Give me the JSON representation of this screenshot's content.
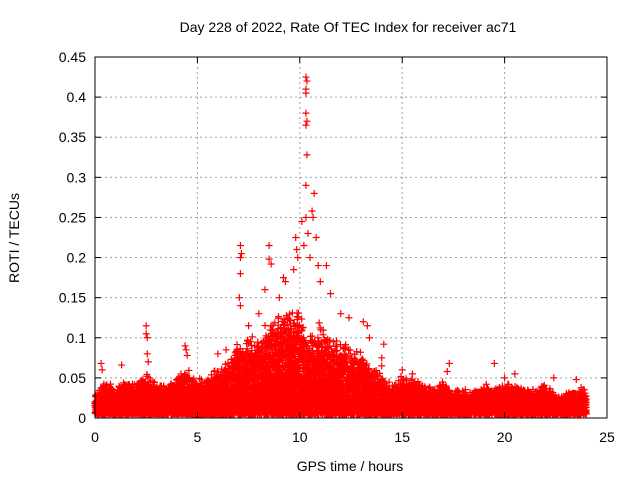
{
  "chart_data": {
    "type": "scatter",
    "title": "Day 228 of 2022, Rate Of TEC Index for receiver ac71",
    "xlabel": "GPS time / hours",
    "ylabel": "ROTI / TECUs",
    "xlim": [
      0,
      25
    ],
    "ylim": [
      0,
      0.45
    ],
    "xticks": [
      0,
      5,
      10,
      15,
      20,
      25
    ],
    "xtick_labels": [
      "0",
      "5",
      "10",
      "15",
      "20",
      "25"
    ],
    "yticks": [
      0,
      0.05,
      0.1,
      0.15,
      0.2,
      0.25,
      0.3,
      0.35,
      0.4,
      0.45
    ],
    "ytick_labels": [
      "0",
      "0.05",
      "0.1",
      "0.15",
      "0.2",
      "0.25",
      "0.3",
      "0.35",
      "0.4",
      "0.45"
    ],
    "grid": true,
    "marker": "+",
    "color": "#ff0000",
    "dense_band": {
      "x_start": 0,
      "x_end": 24,
      "lower": 0.005,
      "hours": [
        0,
        0.5,
        1,
        1.5,
        2,
        2.5,
        3,
        3.5,
        4,
        4.5,
        5,
        5.5,
        6,
        6.5,
        7,
        7.5,
        8,
        8.5,
        9,
        9.5,
        10,
        10.5,
        11,
        11.5,
        12,
        12.5,
        13,
        13.5,
        14,
        14.5,
        15,
        15.5,
        16,
        16.5,
        17,
        17.5,
        18,
        18.5,
        19,
        19.5,
        20,
        20.5,
        21,
        21.5,
        22,
        22.5,
        23,
        23.5,
        24
      ],
      "upper": [
        0.03,
        0.045,
        0.035,
        0.045,
        0.04,
        0.055,
        0.04,
        0.04,
        0.05,
        0.06,
        0.045,
        0.05,
        0.06,
        0.07,
        0.09,
        0.1,
        0.1,
        0.11,
        0.12,
        0.13,
        0.125,
        0.1,
        0.11,
        0.1,
        0.09,
        0.08,
        0.08,
        0.06,
        0.05,
        0.04,
        0.05,
        0.045,
        0.04,
        0.035,
        0.045,
        0.035,
        0.035,
        0.035,
        0.04,
        0.035,
        0.04,
        0.04,
        0.035,
        0.035,
        0.04,
        0.03,
        0.03,
        0.035,
        0.035
      ]
    },
    "points": [
      [
        0.3,
        0.068
      ],
      [
        0.35,
        0.06
      ],
      [
        1.3,
        0.066
      ],
      [
        2.5,
        0.115
      ],
      [
        2.5,
        0.105
      ],
      [
        2.55,
        0.1
      ],
      [
        2.55,
        0.08
      ],
      [
        2.6,
        0.07
      ],
      [
        4.4,
        0.09
      ],
      [
        4.45,
        0.085
      ],
      [
        4.5,
        0.078
      ],
      [
        6,
        0.08
      ],
      [
        6.4,
        0.085
      ],
      [
        7.1,
        0.215
      ],
      [
        7.15,
        0.205
      ],
      [
        7.1,
        0.2
      ],
      [
        7.1,
        0.18
      ],
      [
        7.05,
        0.15
      ],
      [
        7.1,
        0.14
      ],
      [
        7.5,
        0.115
      ],
      [
        8.0,
        0.13
      ],
      [
        8.5,
        0.215
      ],
      [
        8.5,
        0.198
      ],
      [
        8.6,
        0.192
      ],
      [
        8.3,
        0.16
      ],
      [
        9.0,
        0.15
      ],
      [
        9.2,
        0.175
      ],
      [
        9.3,
        0.17
      ],
      [
        9.8,
        0.225
      ],
      [
        9.85,
        0.21
      ],
      [
        9.9,
        0.2
      ],
      [
        9.7,
        0.185
      ],
      [
        10.3,
        0.425
      ],
      [
        10.35,
        0.42
      ],
      [
        10.3,
        0.41
      ],
      [
        10.3,
        0.405
      ],
      [
        10.3,
        0.38
      ],
      [
        10.35,
        0.37
      ],
      [
        10.3,
        0.365
      ],
      [
        10.35,
        0.328
      ],
      [
        10.3,
        0.29
      ],
      [
        10.7,
        0.28
      ],
      [
        10.6,
        0.258
      ],
      [
        10.65,
        0.25
      ],
      [
        10.3,
        0.25
      ],
      [
        10.1,
        0.245
      ],
      [
        10.4,
        0.23
      ],
      [
        10.2,
        0.215
      ],
      [
        10.8,
        0.225
      ],
      [
        10.5,
        0.2
      ],
      [
        10.9,
        0.19
      ],
      [
        11.0,
        0.17
      ],
      [
        11.3,
        0.19
      ],
      [
        11.5,
        0.155
      ],
      [
        12.0,
        0.13
      ],
      [
        12.4,
        0.125
      ],
      [
        13.1,
        0.12
      ],
      [
        13.3,
        0.115
      ],
      [
        13.4,
        0.1
      ],
      [
        14.1,
        0.092
      ],
      [
        14.0,
        0.075
      ],
      [
        14.0,
        0.065
      ],
      [
        15.0,
        0.06
      ],
      [
        15.5,
        0.055
      ],
      [
        17.3,
        0.068
      ],
      [
        17.2,
        0.058
      ],
      [
        19.5,
        0.068
      ],
      [
        20.0,
        0.05
      ],
      [
        20.5,
        0.055
      ],
      [
        22.4,
        0.05
      ],
      [
        23.5,
        0.048
      ]
    ]
  }
}
